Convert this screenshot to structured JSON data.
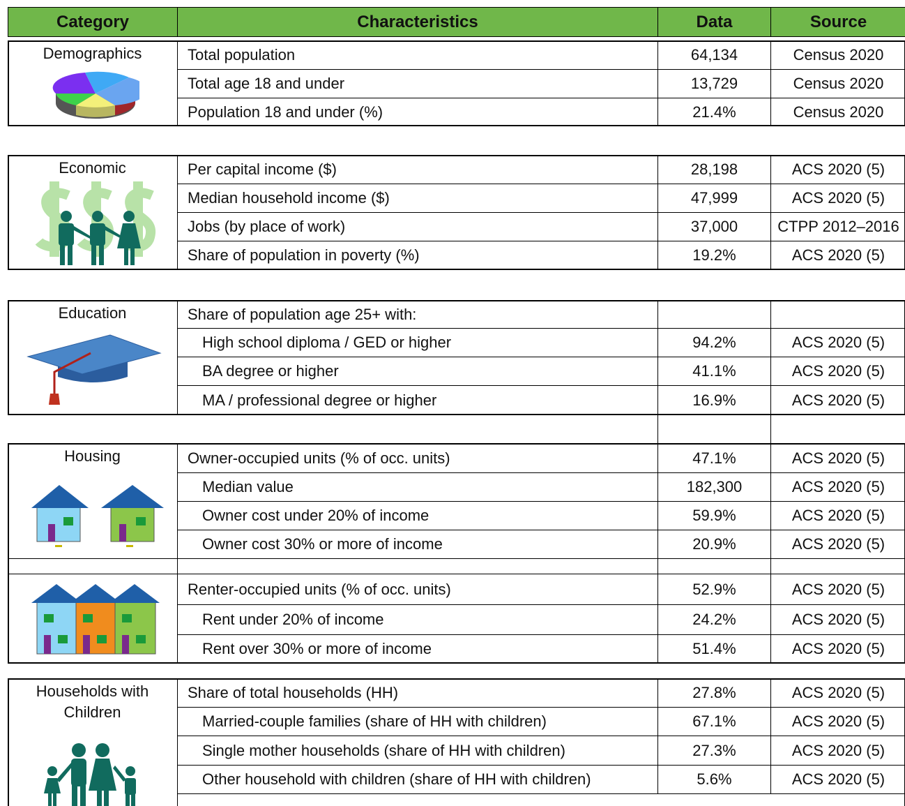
{
  "table": {
    "header": [
      "Category",
      "Characteristics",
      "Data",
      "Source"
    ],
    "sections": [
      {
        "category": "Demographics",
        "rows": [
          {
            "characteristic": "Total population",
            "data": "64,134",
            "source": "Census 2020"
          },
          {
            "characteristic": "Total age 18 and under",
            "data": "13,729",
            "source": "Census 2020"
          },
          {
            "characteristic": "Population 18 and under (%)",
            "data": "21.4%",
            "source": "Census 2020"
          }
        ]
      },
      {
        "category": "Economic",
        "rows": [
          {
            "characteristic": "Per capital income ($)",
            "data": "28,198",
            "source": "ACS 2020 (5)"
          },
          {
            "characteristic": "Median household income ($)",
            "data": "47,999",
            "source": "ACS 2020 (5)"
          },
          {
            "characteristic": "Jobs (by place of work)",
            "data": "37,000",
            "source": "CTPP 2012–2016"
          },
          {
            "characteristic": "Share of population in poverty (%)",
            "data": "19.2%",
            "source": "ACS 2020 (5)"
          }
        ]
      },
      {
        "category": "Education",
        "rows": [
          {
            "characteristic": "Share of population age 25+ with:"
          },
          {
            "characteristic": "High school diploma / GED or higher",
            "data": "94.2%",
            "source": "ACS 2020 (5)"
          },
          {
            "characteristic": "BA degree or higher",
            "data": "41.1%",
            "source": "ACS 2020 (5)"
          },
          {
            "characteristic": "MA / professional degree or higher",
            "data": "16.9%",
            "source": "ACS 2020 (5)"
          }
        ]
      },
      {
        "category": "Housing",
        "rows": [
          {
            "characteristic": "Owner-occupied units (% of occ. units)",
            "data": "47.1%",
            "source": "ACS 2020 (5)"
          },
          {
            "characteristic": "Median value",
            "data": "182,300",
            "source": "ACS 2020 (5)"
          },
          {
            "characteristic": "Owner cost under 20% of income",
            "data": "59.9%",
            "source": "ACS 2020 (5)"
          },
          {
            "characteristic": "Owner cost 30% or more of income",
            "data": "20.9%",
            "source": "ACS 2020 (5)"
          },
          {
            "characteristic": "Renter-occupied units (% of occ. units)",
            "data": "52.9%",
            "source": "ACS 2020 (5)"
          },
          {
            "characteristic": "Rent under 20% of income",
            "data": "24.2%",
            "source": "ACS 2020 (5)"
          },
          {
            "characteristic": "Rent over 30% or more of income",
            "data": "51.4%",
            "source": "ACS 2020 (5)"
          }
        ]
      },
      {
        "category": "Households with Children",
        "rows": [
          {
            "characteristic": "Share of total households (HH)",
            "data": "27.8%",
            "source": "ACS 2020 (5)"
          },
          {
            "characteristic": "Married-couple families (share of HH with children)",
            "data": "67.1%",
            "source": "ACS 2020 (5)"
          },
          {
            "characteristic": "Single mother households (share of HH with children)",
            "data": "27.3%",
            "source": "ACS 2020 (5)"
          },
          {
            "characteristic": "Other household with children (share of HH with children)",
            "data": "5.6%",
            "source": "ACS 2020 (5)"
          }
        ]
      }
    ]
  }
}
